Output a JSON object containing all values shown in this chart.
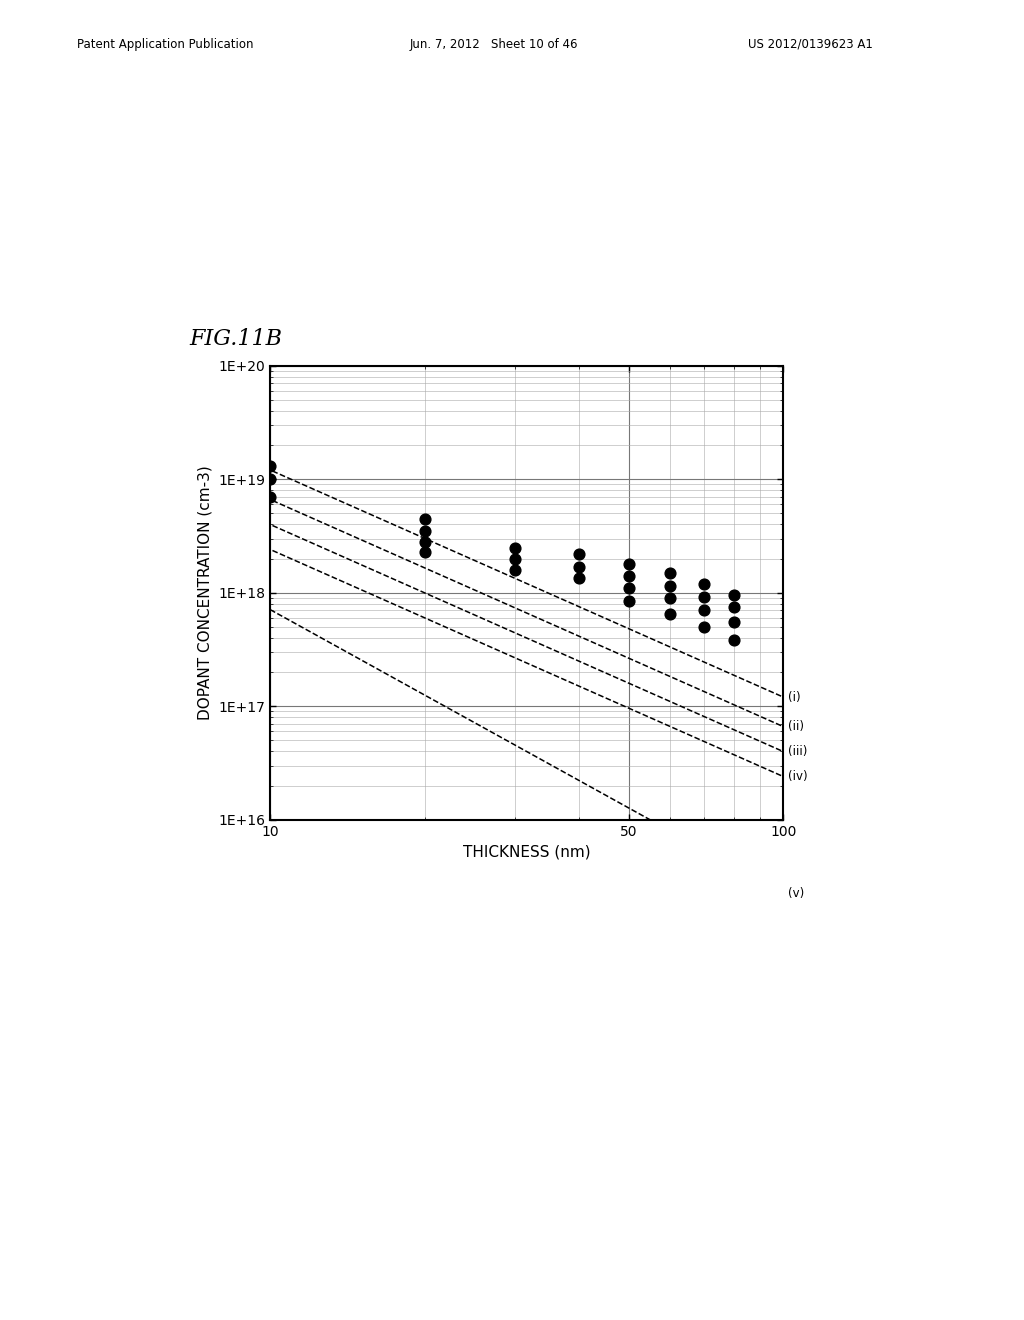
{
  "title": "FIG.11B",
  "xlabel": "THICKNESS (nm)",
  "ylabel": "DOPANT CONCENTRATION (cm-3)",
  "xlim": [
    10,
    100
  ],
  "ylim": [
    1e+16,
    1e+20
  ],
  "background_color": "#ffffff",
  "grid_color": "#aaaaaa",
  "lines": [
    {
      "label": "(i)",
      "log_y_at_x10": 19.08,
      "slope": -2.0
    },
    {
      "label": "(ii)",
      "log_y_at_x10": 18.82,
      "slope": -2.0
    },
    {
      "label": "(iii)",
      "log_y_at_x10": 18.6,
      "slope": -2.0
    },
    {
      "label": "(iv)",
      "log_y_at_x10": 18.38,
      "slope": -2.0
    },
    {
      "label": "(v)",
      "log_y_at_x10": 17.85,
      "slope": -2.5
    }
  ],
  "scatter_points": [
    [
      10,
      1.3e+19
    ],
    [
      10,
      1e+19
    ],
    [
      10,
      7e+18
    ],
    [
      20,
      4.5e+18
    ],
    [
      20,
      3.5e+18
    ],
    [
      20,
      2.8e+18
    ],
    [
      20,
      2.3e+18
    ],
    [
      30,
      2.5e+18
    ],
    [
      30,
      2e+18
    ],
    [
      30,
      1.6e+18
    ],
    [
      40,
      2.2e+18
    ],
    [
      40,
      1.7e+18
    ],
    [
      40,
      1.35e+18
    ],
    [
      50,
      1.8e+18
    ],
    [
      50,
      1.4e+18
    ],
    [
      50,
      1.1e+18
    ],
    [
      50,
      8.5e+17
    ],
    [
      60,
      1.5e+18
    ],
    [
      60,
      1.15e+18
    ],
    [
      60,
      9e+17
    ],
    [
      60,
      6.5e+17
    ],
    [
      70,
      1.2e+18
    ],
    [
      70,
      9.2e+17
    ],
    [
      70,
      7e+17
    ],
    [
      70,
      5e+17
    ],
    [
      80,
      9.5e+17
    ],
    [
      80,
      7.5e+17
    ],
    [
      80,
      5.5e+17
    ],
    [
      80,
      3.8e+17
    ]
  ],
  "xtick_labels": [
    "10",
    "50",
    "100"
  ],
  "xtick_vals": [
    10,
    50,
    100
  ],
  "yticks": [
    1e+16,
    1e+17,
    1e+18,
    1e+19,
    1e+20
  ],
  "ytick_labels": [
    "1E+16",
    "1E+17",
    "1E+18",
    "1E+19",
    "1E+20"
  ],
  "header_left": "Patent Application Publication",
  "header_mid": "Jun. 7, 2012   Sheet 10 of 46",
  "header_right": "US 2012/0139623 A1",
  "fig_label": "FIG.11B",
  "fig_width": 10.24,
  "fig_height": 13.2
}
